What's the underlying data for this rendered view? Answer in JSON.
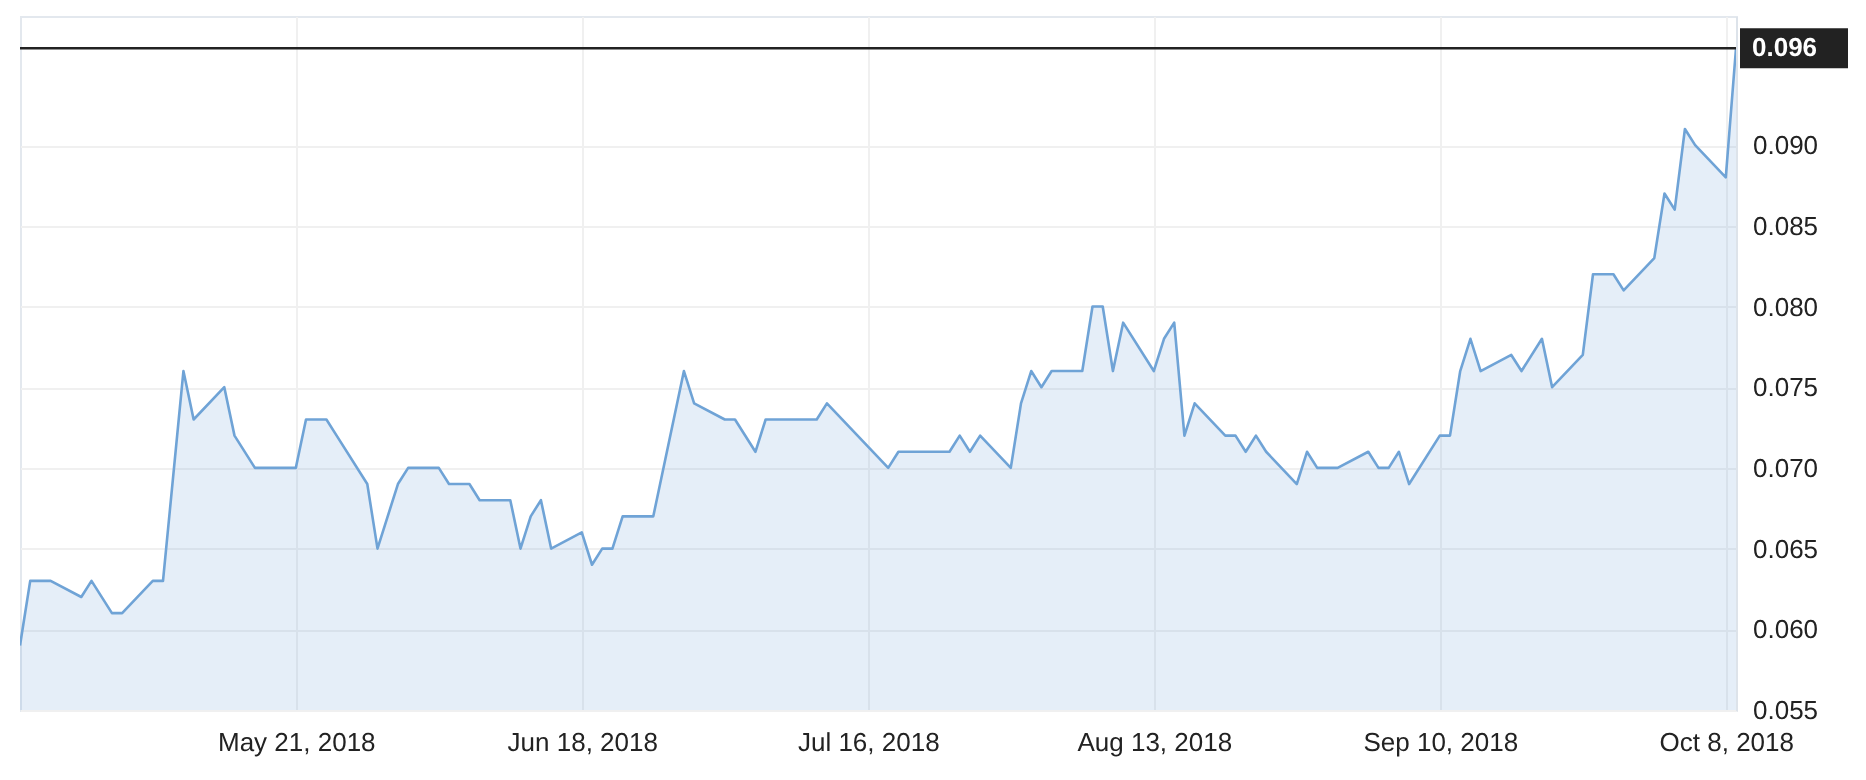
{
  "chart_data": {
    "type": "area",
    "color": "#6fa3d6",
    "x": [
      "2018-04-24",
      "2018-04-25",
      "2018-04-27",
      "2018-04-30",
      "2018-05-01",
      "2018-05-03",
      "2018-05-04",
      "2018-05-07",
      "2018-05-08",
      "2018-05-10",
      "2018-05-11",
      "2018-05-14",
      "2018-05-15",
      "2018-05-17",
      "2018-05-21",
      "2018-05-22",
      "2018-05-24",
      "2018-05-25",
      "2018-05-28",
      "2018-05-29",
      "2018-05-31",
      "2018-06-01",
      "2018-06-04",
      "2018-06-05",
      "2018-06-07",
      "2018-06-08",
      "2018-06-11",
      "2018-06-12",
      "2018-06-13",
      "2018-06-14",
      "2018-06-15",
      "2018-06-18",
      "2018-06-19",
      "2018-06-20",
      "2018-06-21",
      "2018-06-22",
      "2018-06-25",
      "2018-06-28",
      "2018-06-29",
      "2018-07-02",
      "2018-07-03",
      "2018-07-05",
      "2018-07-06",
      "2018-07-11",
      "2018-07-12",
      "2018-07-18",
      "2018-07-19",
      "2018-07-24",
      "2018-07-25",
      "2018-07-26",
      "2018-07-27",
      "2018-07-30",
      "2018-07-31",
      "2018-08-01",
      "2018-08-02",
      "2018-08-03",
      "2018-08-06",
      "2018-08-07",
      "2018-08-08",
      "2018-08-09",
      "2018-08-10",
      "2018-08-13",
      "2018-08-14",
      "2018-08-15",
      "2018-08-16",
      "2018-08-17",
      "2018-08-20",
      "2018-08-21",
      "2018-08-22",
      "2018-08-23",
      "2018-08-24",
      "2018-08-27",
      "2018-08-28",
      "2018-08-29",
      "2018-08-31",
      "2018-09-03",
      "2018-09-04",
      "2018-09-05",
      "2018-09-06",
      "2018-09-07",
      "2018-09-10",
      "2018-09-11",
      "2018-09-12",
      "2018-09-13",
      "2018-09-14",
      "2018-09-17",
      "2018-09-18",
      "2018-09-20",
      "2018-09-21",
      "2018-09-24",
      "2018-09-25",
      "2018-09-27",
      "2018-09-28",
      "2018-10-01",
      "2018-10-02",
      "2018-10-03",
      "2018-10-04",
      "2018-10-05",
      "2018-10-08",
      "2018-10-09"
    ],
    "values": [
      0.059,
      0.063,
      0.063,
      0.062,
      0.063,
      0.061,
      0.061,
      0.063,
      0.063,
      0.076,
      0.073,
      0.075,
      0.072,
      0.07,
      0.07,
      0.073,
      0.073,
      0.072,
      0.069,
      0.065,
      0.069,
      0.07,
      0.07,
      0.069,
      0.069,
      0.068,
      0.068,
      0.065,
      0.067,
      0.068,
      0.065,
      0.066,
      0.064,
      0.065,
      0.065,
      0.067,
      0.067,
      0.076,
      0.074,
      0.073,
      0.073,
      0.071,
      0.073,
      0.073,
      0.074,
      0.07,
      0.071,
      0.071,
      0.072,
      0.071,
      0.072,
      0.07,
      0.074,
      0.076,
      0.075,
      0.076,
      0.076,
      0.08,
      0.08,
      0.076,
      0.079,
      0.076,
      0.078,
      0.079,
      0.072,
      0.074,
      0.072,
      0.072,
      0.071,
      0.072,
      0.071,
      0.069,
      0.071,
      0.07,
      0.07,
      0.071,
      0.07,
      0.07,
      0.071,
      0.069,
      0.072,
      0.072,
      0.076,
      0.078,
      0.076,
      0.077,
      0.076,
      0.078,
      0.075,
      0.077,
      0.082,
      0.082,
      0.081,
      0.083,
      0.087,
      0.086,
      0.091,
      0.09,
      0.088,
      0.096
    ],
    "xlim": [
      "2018-04-24",
      "2018-10-09"
    ],
    "xticks": [
      {
        "value": "2018-05-21",
        "label": "May 21, 2018"
      },
      {
        "value": "2018-06-18",
        "label": "Jun 18, 2018"
      },
      {
        "value": "2018-07-16",
        "label": "Jul 16, 2018"
      },
      {
        "value": "2018-08-13",
        "label": "Aug 13, 2018"
      },
      {
        "value": "2018-09-10",
        "label": "Sep 10, 2018"
      },
      {
        "value": "2018-10-08",
        "label": "Oct 8, 2018"
      }
    ],
    "ylim": [
      0.055,
      0.098
    ],
    "yticks": [
      {
        "value": 0.055,
        "label": "0.055"
      },
      {
        "value": 0.06,
        "label": "0.060"
      },
      {
        "value": 0.065,
        "label": "0.065"
      },
      {
        "value": 0.07,
        "label": "0.070"
      },
      {
        "value": 0.075,
        "label": "0.075"
      },
      {
        "value": 0.08,
        "label": "0.080"
      },
      {
        "value": 0.085,
        "label": "0.085"
      },
      {
        "value": 0.09,
        "label": "0.090"
      }
    ],
    "ref_lines": [
      {
        "axis": "y",
        "value": 0.096,
        "label": "0.096",
        "color": "#222222"
      }
    ],
    "grid": true
  }
}
